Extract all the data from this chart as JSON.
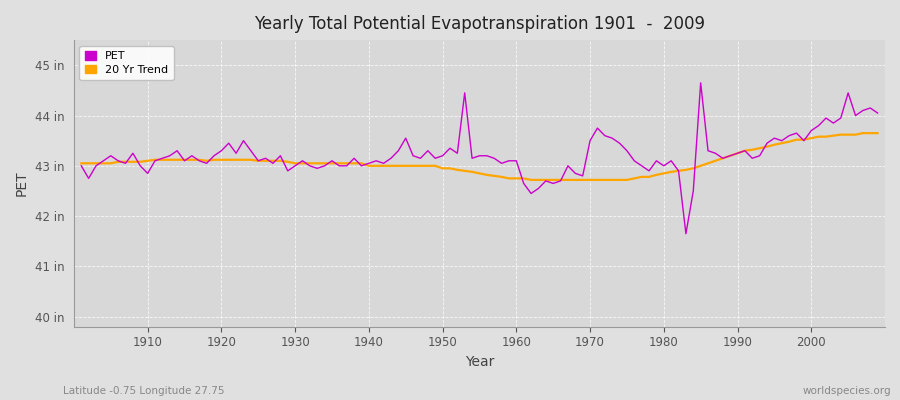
{
  "title": "Yearly Total Potential Evapotranspiration 1901  -  2009",
  "xlabel": "Year",
  "ylabel": "PET",
  "subtitle_left": "Latitude -0.75 Longitude 27.75",
  "subtitle_right": "worldspecies.org",
  "pet_color": "#CC00CC",
  "trend_color": "#FFA500",
  "bg_color": "#E0E0E0",
  "plot_bg_color": "#D8D8D8",
  "ylim": [
    39.8,
    45.5
  ],
  "yticks": [
    40,
    41,
    42,
    43,
    44,
    45
  ],
  "ytick_labels": [
    "40 in",
    "41 in",
    "42 in",
    "43 in",
    "44 in",
    "45 in"
  ],
  "years": [
    1901,
    1902,
    1903,
    1904,
    1905,
    1906,
    1907,
    1908,
    1909,
    1910,
    1911,
    1912,
    1913,
    1914,
    1915,
    1916,
    1917,
    1918,
    1919,
    1920,
    1921,
    1922,
    1923,
    1924,
    1925,
    1926,
    1927,
    1928,
    1929,
    1930,
    1931,
    1932,
    1933,
    1934,
    1935,
    1936,
    1937,
    1938,
    1939,
    1940,
    1941,
    1942,
    1943,
    1944,
    1945,
    1946,
    1947,
    1948,
    1949,
    1950,
    1951,
    1952,
    1953,
    1954,
    1955,
    1956,
    1957,
    1958,
    1959,
    1960,
    1961,
    1962,
    1963,
    1964,
    1965,
    1966,
    1967,
    1968,
    1969,
    1970,
    1971,
    1972,
    1973,
    1974,
    1975,
    1976,
    1977,
    1978,
    1979,
    1980,
    1981,
    1982,
    1983,
    1984,
    1985,
    1986,
    1987,
    1988,
    1989,
    1990,
    1991,
    1992,
    1993,
    1994,
    1995,
    1996,
    1997,
    1998,
    1999,
    2000,
    2001,
    2002,
    2003,
    2004,
    2005,
    2006,
    2007,
    2008,
    2009
  ],
  "pet_values": [
    43.0,
    42.75,
    43.0,
    43.1,
    43.2,
    43.1,
    43.05,
    43.25,
    43.0,
    42.85,
    43.1,
    43.15,
    43.2,
    43.3,
    43.1,
    43.2,
    43.1,
    43.05,
    43.2,
    43.3,
    43.45,
    43.25,
    43.5,
    43.3,
    43.1,
    43.15,
    43.05,
    43.2,
    42.9,
    43.0,
    43.1,
    43.0,
    42.95,
    43.0,
    43.1,
    43.0,
    43.0,
    43.15,
    43.0,
    43.05,
    43.1,
    43.05,
    43.15,
    43.3,
    43.55,
    43.2,
    43.15,
    43.3,
    43.15,
    43.2,
    43.35,
    43.25,
    44.45,
    43.15,
    43.2,
    43.2,
    43.15,
    43.05,
    43.1,
    43.1,
    42.65,
    42.45,
    42.55,
    42.7,
    42.65,
    42.7,
    43.0,
    42.85,
    42.8,
    43.5,
    43.75,
    43.6,
    43.55,
    43.45,
    43.3,
    43.1,
    43.0,
    42.9,
    43.1,
    43.0,
    43.1,
    42.9,
    41.65,
    42.5,
    44.65,
    43.3,
    43.25,
    43.15,
    43.2,
    43.25,
    43.3,
    43.15,
    43.2,
    43.45,
    43.55,
    43.5,
    43.6,
    43.65,
    43.5,
    43.7,
    43.8,
    43.95,
    43.85,
    43.95,
    44.45,
    44.0,
    44.1,
    44.15,
    44.05
  ],
  "trend_values": [
    43.05,
    43.05,
    43.05,
    43.05,
    43.05,
    43.08,
    43.08,
    43.08,
    43.08,
    43.1,
    43.12,
    43.12,
    43.12,
    43.12,
    43.12,
    43.12,
    43.12,
    43.1,
    43.12,
    43.12,
    43.12,
    43.12,
    43.12,
    43.12,
    43.1,
    43.1,
    43.1,
    43.1,
    43.08,
    43.05,
    43.05,
    43.05,
    43.05,
    43.05,
    43.05,
    43.05,
    43.05,
    43.05,
    43.05,
    43.0,
    43.0,
    43.0,
    43.0,
    43.0,
    43.0,
    43.0,
    43.0,
    43.0,
    43.0,
    42.95,
    42.95,
    42.92,
    42.9,
    42.88,
    42.85,
    42.82,
    42.8,
    42.78,
    42.75,
    42.75,
    42.75,
    42.72,
    42.72,
    42.72,
    42.72,
    42.72,
    42.72,
    42.72,
    42.72,
    42.72,
    42.72,
    42.72,
    42.72,
    42.72,
    42.72,
    42.75,
    42.78,
    42.78,
    42.82,
    42.85,
    42.88,
    42.9,
    42.92,
    42.95,
    43.0,
    43.05,
    43.1,
    43.15,
    43.2,
    43.25,
    43.3,
    43.32,
    43.35,
    43.38,
    43.42,
    43.45,
    43.48,
    43.52,
    43.52,
    43.55,
    43.58,
    43.58,
    43.6,
    43.62,
    43.62,
    43.62,
    43.65,
    43.65,
    43.65
  ]
}
